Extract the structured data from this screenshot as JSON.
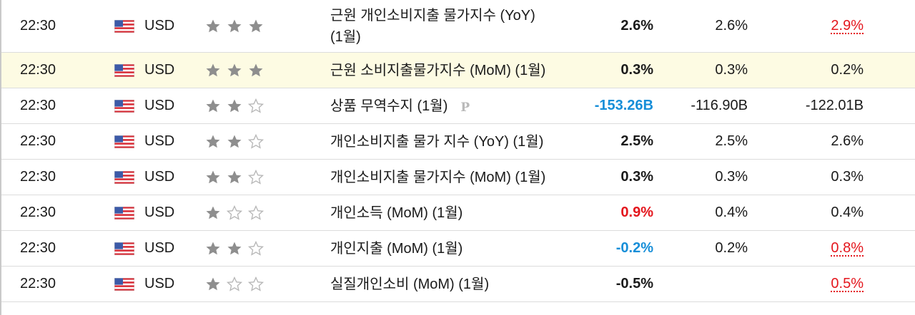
{
  "colors": {
    "positive_surprise": "#e4161d",
    "negative_surprise": "#168ed8",
    "star_filled": "#8e8e8e",
    "star_empty": "#b6b6b6",
    "highlight_row": "#fdfbe3",
    "revised_previous": "#e4161d"
  },
  "icons": {
    "flag": "us-flag-icon",
    "importance": "star-icon",
    "preliminary": "preliminary-p-icon"
  },
  "events": [
    {
      "time": "22:30",
      "currency": "USD",
      "importance": 3,
      "event_line1": "근원 개인소비지출 물가지수 (YoY)",
      "event_line2": "(1월)",
      "actual": "2.6%",
      "forecast": "2.6%",
      "previous": "2.9%",
      "actual_color": "",
      "previous_revised": true,
      "preliminary": false
    },
    {
      "time": "22:30",
      "currency": "USD",
      "importance": 3,
      "event_line1": "근원 소비지출물가지수 (MoM) (1월)",
      "event_line2": "",
      "actual": "0.3%",
      "forecast": "0.3%",
      "previous": "0.2%",
      "actual_color": "",
      "previous_revised": false,
      "preliminary": false
    },
    {
      "time": "22:30",
      "currency": "USD",
      "importance": 2,
      "event_line1": "상품 무역수지 (1월)",
      "event_line2": "",
      "actual": "-153.26B",
      "forecast": "-116.90B",
      "previous": "-122.01B",
      "actual_color": "blue",
      "previous_revised": false,
      "preliminary": true,
      "preliminary_label": "P"
    },
    {
      "time": "22:30",
      "currency": "USD",
      "importance": 2,
      "event_line1": "개인소비지출 물가 지수 (YoY) (1월)",
      "event_line2": "",
      "actual": "2.5%",
      "forecast": "2.5%",
      "previous": "2.6%",
      "actual_color": "",
      "previous_revised": false,
      "preliminary": false
    },
    {
      "time": "22:30",
      "currency": "USD",
      "importance": 2,
      "event_line1": "개인소비지출 물가지수 (MoM) (1월)",
      "event_line2": "",
      "actual": "0.3%",
      "forecast": "0.3%",
      "previous": "0.3%",
      "actual_color": "",
      "previous_revised": false,
      "preliminary": false
    },
    {
      "time": "22:30",
      "currency": "USD",
      "importance": 1,
      "event_line1": "개인소득 (MoM) (1월)",
      "event_line2": "",
      "actual": "0.9%",
      "forecast": "0.4%",
      "previous": "0.4%",
      "actual_color": "red",
      "previous_revised": false,
      "preliminary": false
    },
    {
      "time": "22:30",
      "currency": "USD",
      "importance": 2,
      "event_line1": "개인지출 (MoM) (1월)",
      "event_line2": "",
      "actual": "-0.2%",
      "forecast": "0.2%",
      "previous": "0.8%",
      "actual_color": "blue",
      "previous_revised": true,
      "preliminary": false
    },
    {
      "time": "22:30",
      "currency": "USD",
      "importance": 1,
      "event_line1": "실질개인소비 (MoM) (1월)",
      "event_line2": "",
      "actual": "-0.5%",
      "forecast": "",
      "previous": "0.5%",
      "actual_color": "",
      "previous_revised": true,
      "preliminary": false
    }
  ]
}
